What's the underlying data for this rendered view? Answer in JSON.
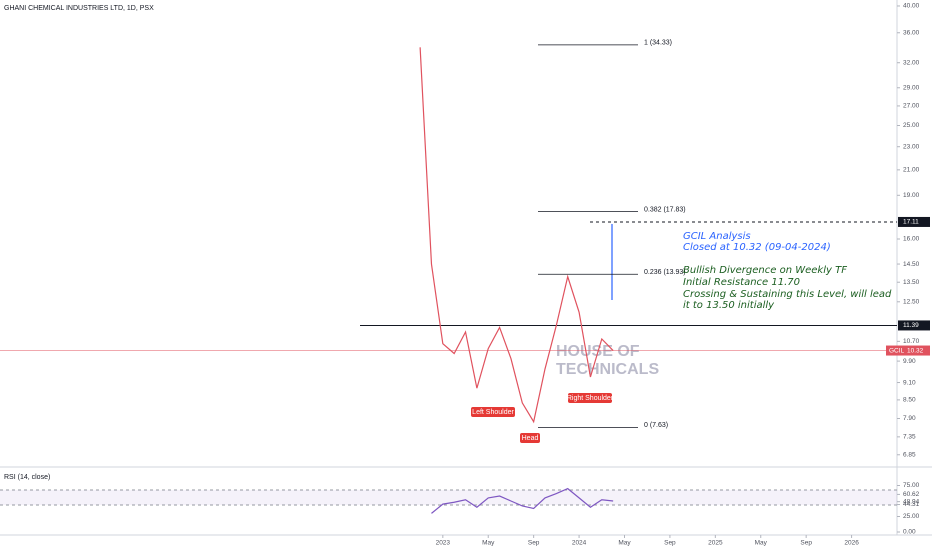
{
  "chart_data": [
    {
      "type": "line",
      "title": "GHANI CHEMICAL INDUSTRIES LTD, 1D, PSX",
      "log_scale": true,
      "x": [
        "2022-11",
        "2022-12",
        "2023-01",
        "2023-02",
        "2023-03",
        "2023-04",
        "2023-05",
        "2023-06",
        "2023-07",
        "2023-08",
        "2023-09",
        "2023-10",
        "2023-11",
        "2023-12",
        "2024-01",
        "2024-02",
        "2024-03",
        "2024-04"
      ],
      "series": [
        {
          "name": "GCIL",
          "color": "#e0525e",
          "values": [
            34,
            14.5,
            10.6,
            10.2,
            11.1,
            8.9,
            10.4,
            11.3,
            10.0,
            8.4,
            7.8,
            9.6,
            11.4,
            13.8,
            12.0,
            9.3,
            10.8,
            10.32
          ]
        }
      ],
      "xlim": [
        "2019-10",
        "2026-05"
      ],
      "xticks": [
        {
          "value": "2023-01",
          "label": "2023"
        },
        {
          "value": "2023-05",
          "label": "May"
        },
        {
          "value": "2023-09",
          "label": "Sep"
        },
        {
          "value": "2024-01",
          "label": "2024"
        },
        {
          "value": "2024-05",
          "label": "May"
        },
        {
          "value": "2024-09",
          "label": "Sep"
        },
        {
          "value": "2025-01",
          "label": "2025"
        },
        {
          "value": "2025-05",
          "label": "May"
        },
        {
          "value": "2025-09",
          "label": "Sep"
        },
        {
          "value": "2026-01",
          "label": "2026"
        }
      ],
      "ylim": [
        6.58,
        40.95
      ],
      "yticks": [
        {
          "value": 40,
          "label": "40.00"
        },
        {
          "value": 36,
          "label": "36.00"
        },
        {
          "value": 32,
          "label": "32.00"
        },
        {
          "value": 29,
          "label": "29.00"
        },
        {
          "value": 27,
          "label": "27.00"
        },
        {
          "value": 25,
          "label": "25.00"
        },
        {
          "value": 23,
          "label": "23.00"
        },
        {
          "value": 21,
          "label": "21.00"
        },
        {
          "value": 19,
          "label": "19.00"
        },
        {
          "value": 16,
          "label": "16.00"
        },
        {
          "value": 14.5,
          "label": "14.50"
        },
        {
          "value": 13.5,
          "label": "13.50"
        },
        {
          "value": 12.5,
          "label": "12.50"
        },
        {
          "value": 10.7,
          "label": "10.70"
        },
        {
          "value": 9.9,
          "label": "9.90"
        },
        {
          "value": 9.1,
          "label": "9.10"
        },
        {
          "value": 8.5,
          "label": "8.50"
        },
        {
          "value": 7.9,
          "label": "7.90"
        },
        {
          "value": 7.35,
          "label": "7.35"
        },
        {
          "value": 6.85,
          "label": "6.85"
        }
      ],
      "levels": [
        {
          "value": 17.11,
          "label": "17.11",
          "color": "#131722",
          "dash": true
        },
        {
          "value": 11.39,
          "label": "11.39",
          "color": "#131722",
          "dash": false
        }
      ],
      "fib": [
        {
          "value": 34.33,
          "label": "1 (34.33)"
        },
        {
          "value": 17.83,
          "label": "0.382 (17.83)"
        },
        {
          "value": 13.93,
          "label": "0.236 (13.93)"
        },
        {
          "value": 7.63,
          "label": "0 (7.63)"
        }
      ],
      "patterns": [
        "Left Shoulder",
        "Head",
        "Right Shoulder"
      ],
      "notes": [
        {
          "text": "GCIL Analysis",
          "color": "#2962ff"
        },
        {
          "text": "Closed at 10.32 (09-04-2024)",
          "color": "#2962ff"
        },
        {
          "text": "Bullish Divergence on Weekly TF",
          "color": "#1b5e20"
        },
        {
          "text": "Initial Resistance 11.70",
          "color": "#1b5e20"
        },
        {
          "text": "Crossing & Sustaining this Level, will lead",
          "color": "#1b5e20"
        },
        {
          "text": "it to 13.50 initially",
          "color": "#1b5e20"
        }
      ],
      "watermark": [
        "HOUSE OF",
        "TECHNICALS"
      ]
    },
    {
      "type": "line",
      "title": "RSI (14, close)",
      "x": [
        "2022-12",
        "2023-01",
        "2023-02",
        "2023-03",
        "2023-04",
        "2023-05",
        "2023-06",
        "2023-07",
        "2023-08",
        "2023-09",
        "2023-10",
        "2023-11",
        "2023-12",
        "2024-01",
        "2024-02",
        "2024-03",
        "2024-04"
      ],
      "series": [
        {
          "name": "RSI",
          "color": "#7e57c2",
          "values": [
            30,
            45,
            48,
            52,
            40,
            55,
            58,
            50,
            42,
            38,
            55,
            62,
            70,
            55,
            40,
            52,
            50
          ]
        }
      ],
      "ylim": [
        0,
        100
      ],
      "yticks": [
        {
          "value": 75,
          "label": "75.00"
        },
        {
          "value": 60.62,
          "label": "60.62"
        },
        {
          "value": 48.94,
          "label": "48.94"
        },
        {
          "value": 44.31,
          "label": "44.31"
        },
        {
          "value": 25,
          "label": "25.00"
        },
        {
          "value": 0,
          "label": "0.00"
        }
      ]
    }
  ]
}
